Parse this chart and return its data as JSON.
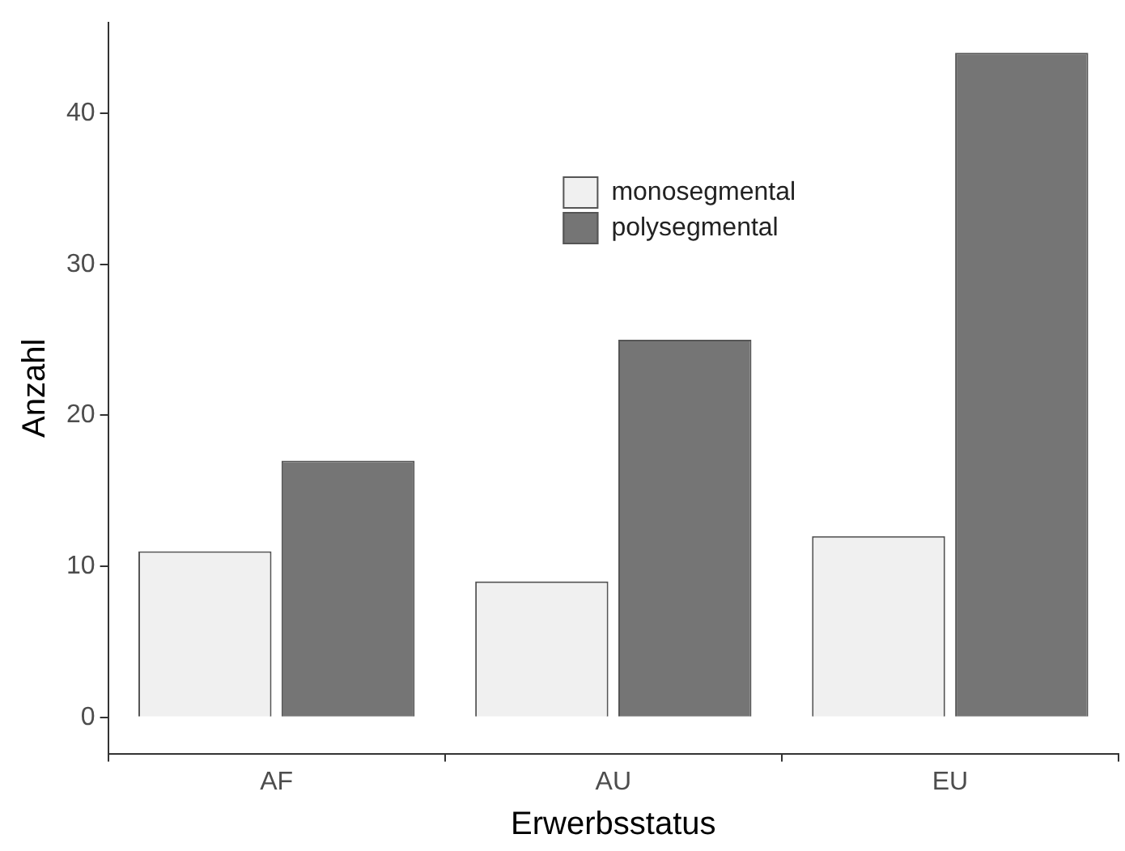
{
  "chart_data": {
    "type": "bar",
    "xlabel": "Erwerbsstatus",
    "ylabel": "Anzahl",
    "categories": [
      "AF",
      "AU",
      "EU"
    ],
    "series": [
      {
        "name": "monosegmental",
        "color": "#f0f0f0",
        "values": [
          11,
          9,
          12
        ]
      },
      {
        "name": "polysegmental",
        "color": "#757575",
        "values": [
          17,
          25,
          44
        ]
      }
    ],
    "ylim": [
      -2.4,
      46
    ],
    "yticks": [
      0,
      10,
      20,
      30,
      40
    ],
    "grid": false,
    "legend": "top"
  }
}
